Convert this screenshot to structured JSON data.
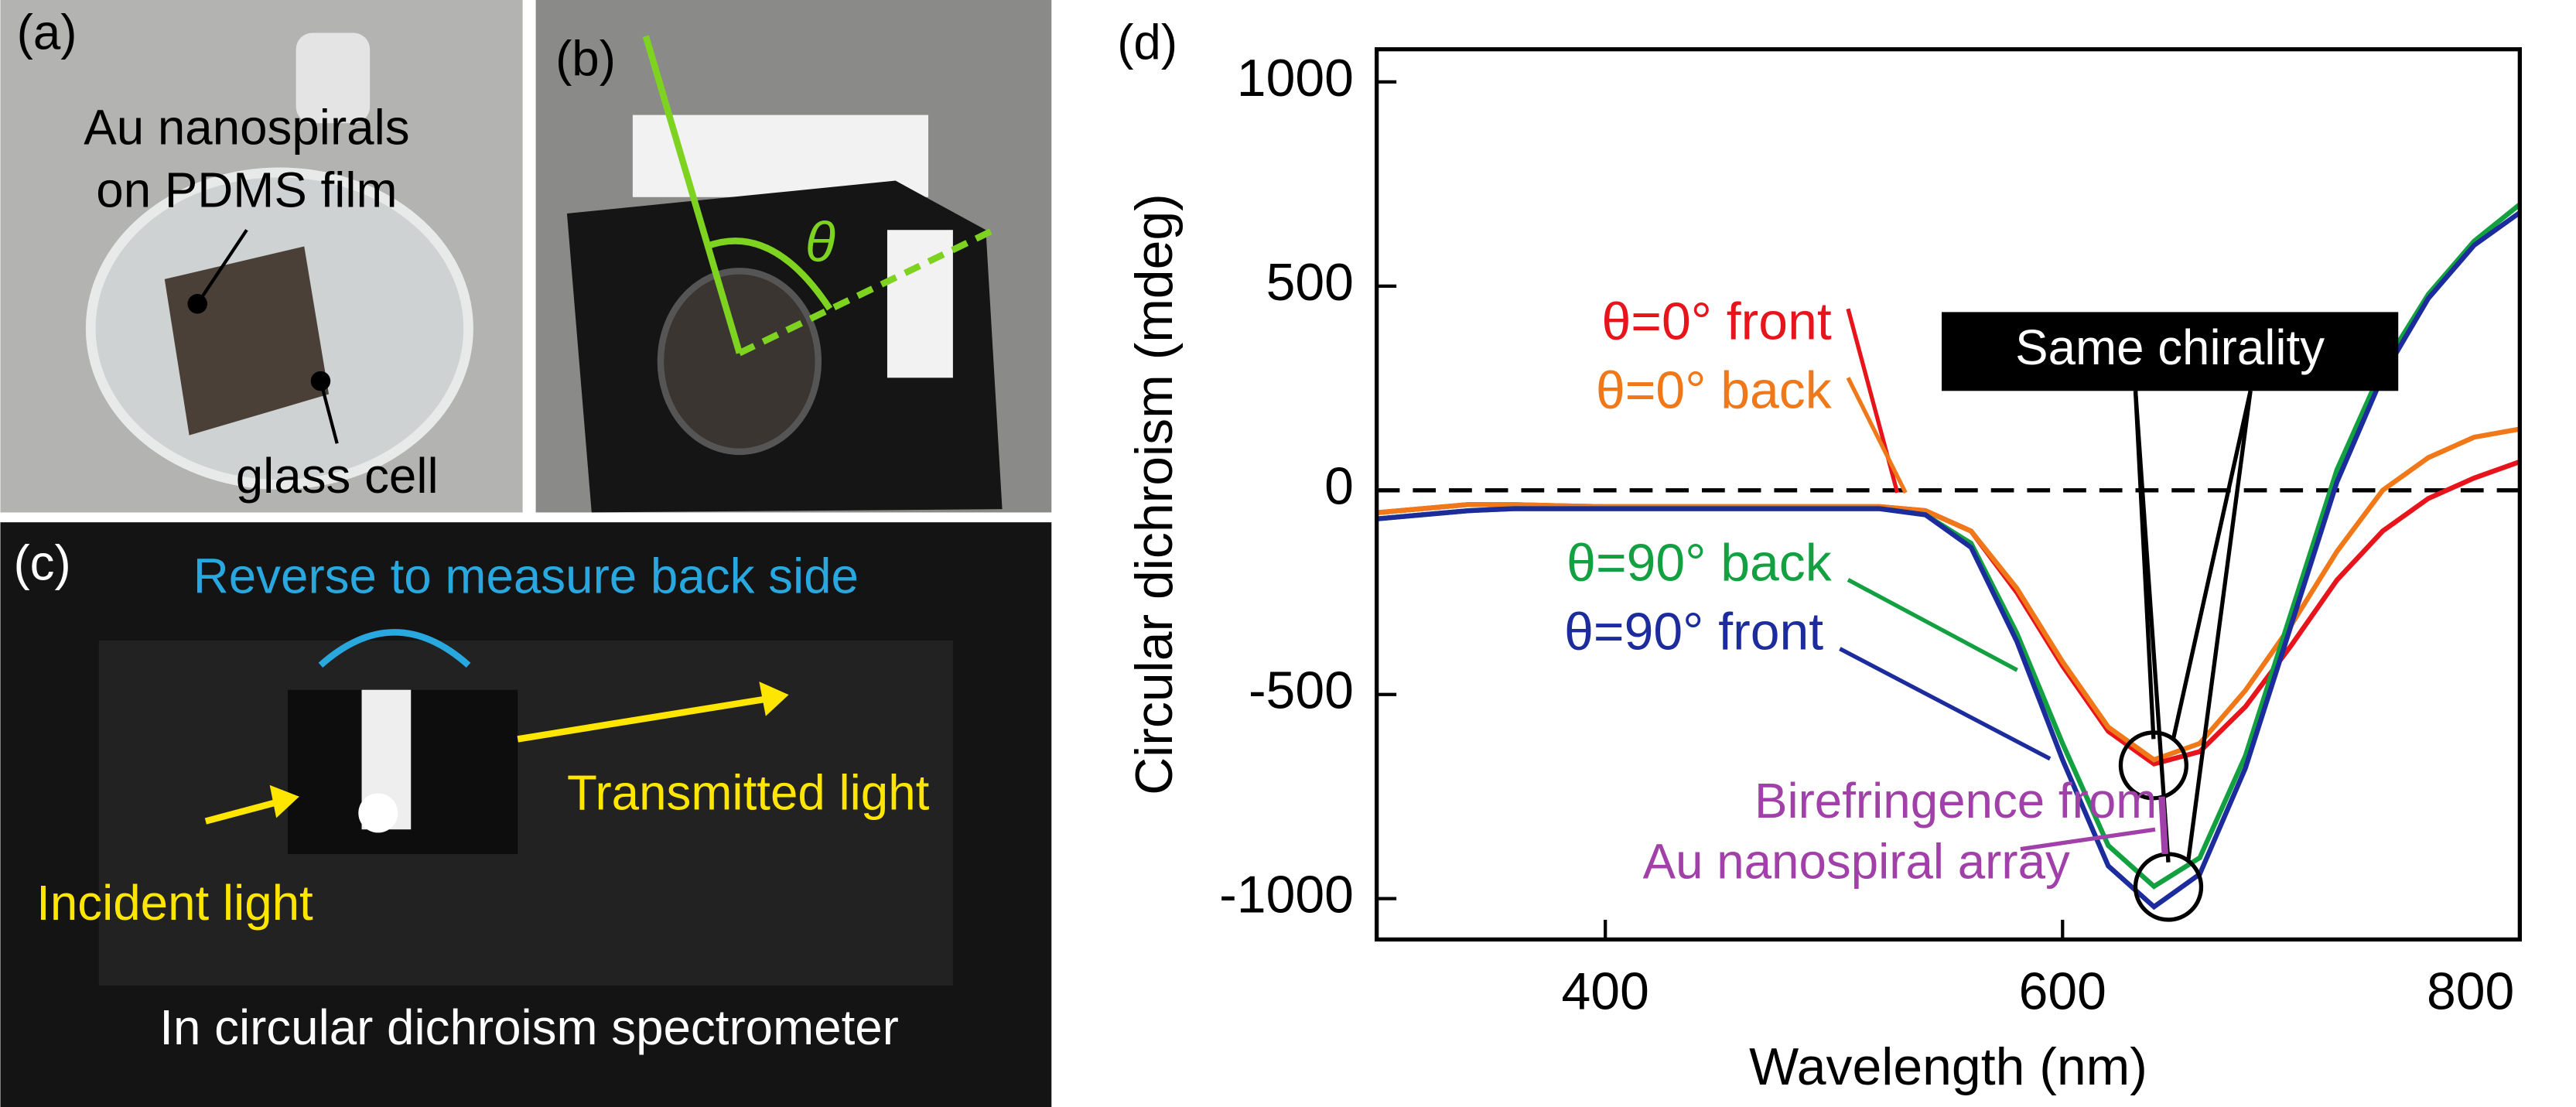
{
  "panel_a": {
    "label": "(a)",
    "sample_label": [
      "Au nanospirals",
      "on PDMS film"
    ],
    "cell_label": "glass cell"
  },
  "panel_b": {
    "label": "(b)",
    "angle": "θ"
  },
  "panel_c": {
    "label": "(c)",
    "reverse": "Reverse to measure back side",
    "transmitted": "Transmitted light",
    "incident": "Incident light",
    "caption": "In circular dichroism spectrometer"
  },
  "chart_data": {
    "type": "line",
    "panel_label": "(d)",
    "xlabel": "Wavelength (nm)",
    "ylabel": "Circular dichroism (mdeg)",
    "xlim": [
      300,
      800
    ],
    "xticks": [
      400,
      600,
      800
    ],
    "ylim": [
      -1100,
      1080
    ],
    "yticks": [
      -1000,
      -500,
      0,
      500,
      1000
    ],
    "hline": 0,
    "x": [
      300,
      320,
      340,
      360,
      380,
      400,
      420,
      440,
      460,
      480,
      500,
      520,
      540,
      560,
      580,
      600,
      620,
      640,
      660,
      680,
      700,
      720,
      740,
      760,
      780,
      800
    ],
    "series": [
      {
        "name": "θ=0° front",
        "color": "#e8141c",
        "values": [
          -55,
          -45,
          -35,
          -35,
          -38,
          -40,
          -40,
          -40,
          -40,
          -40,
          -40,
          -40,
          -50,
          -100,
          -250,
          -430,
          -590,
          -670,
          -640,
          -530,
          -380,
          -220,
          -100,
          -20,
          30,
          70
        ]
      },
      {
        "name": "θ=0° back",
        "color": "#f07818",
        "values": [
          -55,
          -45,
          -35,
          -35,
          -38,
          -40,
          -40,
          -40,
          -40,
          -40,
          -40,
          -40,
          -50,
          -100,
          -240,
          -420,
          -580,
          -660,
          -620,
          -490,
          -330,
          -150,
          0,
          80,
          130,
          150
        ]
      },
      {
        "name": "θ=90° back",
        "color": "#12a040",
        "values": [
          -70,
          -60,
          -50,
          -45,
          -45,
          -45,
          -45,
          -45,
          -45,
          -45,
          -45,
          -45,
          -60,
          -130,
          -350,
          -620,
          -870,
          -970,
          -900,
          -650,
          -300,
          50,
          300,
          480,
          610,
          700
        ]
      },
      {
        "name": "θ=90° front",
        "color": "#1c2c9c",
        "values": [
          -70,
          -60,
          -50,
          -45,
          -45,
          -45,
          -45,
          -45,
          -45,
          -45,
          -45,
          -45,
          -60,
          -140,
          -370,
          -660,
          -920,
          -1020,
          -940,
          -680,
          -330,
          20,
          280,
          470,
          600,
          680
        ]
      }
    ],
    "annotations": {
      "same": "Same chirality",
      "biref": [
        "Birefringence from",
        "Au nanospiral array"
      ]
    }
  }
}
